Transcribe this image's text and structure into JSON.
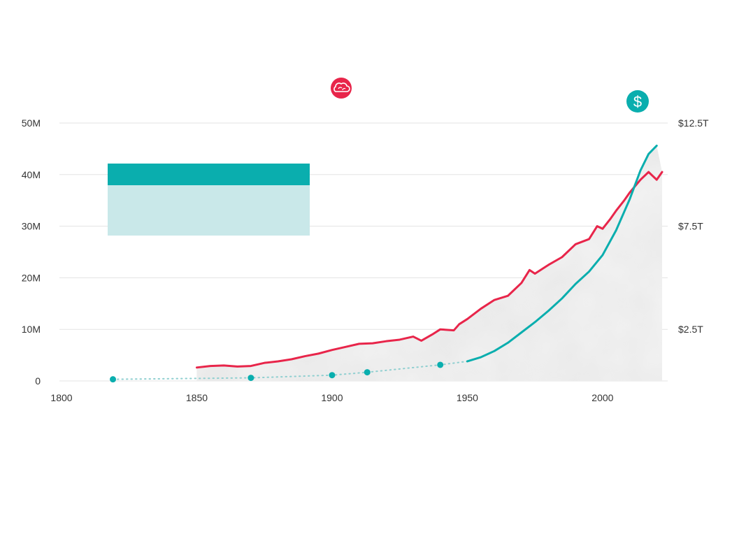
{
  "icons": {
    "left_series_icon": "cloud-icon",
    "right_series_icon": "dollar-icon",
    "dollar_glyph": "$"
  },
  "colors": {
    "left_series": "#e8254a",
    "right_series": "#0aaeae",
    "right_series_dotted": "#8fcfd0",
    "legend_dark": "#0aaeae",
    "legend_light": "#c9e8e9",
    "grid": "#e3e3e3",
    "texture": "#d8d8d8"
  },
  "chart_data": {
    "type": "line",
    "x_ticks": [
      "1800",
      "1850",
      "1900",
      "1950",
      "2000"
    ],
    "xlim": [
      1800,
      2024
    ],
    "y_left_ticks": [
      {
        "value": 0,
        "label": "0"
      },
      {
        "value": 10,
        "label": "10M"
      },
      {
        "value": 20,
        "label": "20M"
      },
      {
        "value": 30,
        "label": "30M"
      },
      {
        "value": 40,
        "label": "40M"
      },
      {
        "value": 50,
        "label": "50M"
      }
    ],
    "y_right_ticks": [
      {
        "value": 2.5,
        "label": "$2.5T"
      },
      {
        "value": 7.5,
        "label": "$7.5T"
      },
      {
        "value": 12.5,
        "label": "$12.5T"
      }
    ],
    "ylim_left": [
      0,
      50
    ],
    "ylim_right": [
      0,
      12.5
    ],
    "series": [
      {
        "axis": "left",
        "style": "solid",
        "points": [
          [
            1850,
            2.6
          ],
          [
            1855,
            2.9
          ],
          [
            1860,
            3.0
          ],
          [
            1865,
            2.8
          ],
          [
            1870,
            2.9
          ],
          [
            1875,
            3.5
          ],
          [
            1880,
            3.8
          ],
          [
            1885,
            4.2
          ],
          [
            1890,
            4.8
          ],
          [
            1895,
            5.3
          ],
          [
            1900,
            6.0
          ],
          [
            1905,
            6.6
          ],
          [
            1910,
            7.2
          ],
          [
            1915,
            7.3
          ],
          [
            1920,
            7.7
          ],
          [
            1925,
            8.0
          ],
          [
            1930,
            8.6
          ],
          [
            1933,
            7.8
          ],
          [
            1937,
            9.0
          ],
          [
            1940,
            10.0
          ],
          [
            1945,
            9.8
          ],
          [
            1947,
            11.0
          ],
          [
            1950,
            12.0
          ],
          [
            1955,
            14.0
          ],
          [
            1960,
            15.7
          ],
          [
            1965,
            16.5
          ],
          [
            1970,
            19.0
          ],
          [
            1973,
            21.5
          ],
          [
            1975,
            20.8
          ],
          [
            1980,
            22.5
          ],
          [
            1985,
            24.0
          ],
          [
            1990,
            26.5
          ],
          [
            1995,
            27.5
          ],
          [
            1998,
            30.0
          ],
          [
            2000,
            29.5
          ],
          [
            2003,
            31.5
          ],
          [
            2005,
            33.0
          ],
          [
            2008,
            35.0
          ],
          [
            2010,
            36.5
          ],
          [
            2014,
            39.0
          ],
          [
            2017,
            40.5
          ],
          [
            2020,
            39.0
          ],
          [
            2022,
            40.5
          ]
        ]
      },
      {
        "axis": "right",
        "style": "dotted",
        "points": [
          [
            1819,
            0.08
          ],
          [
            1870,
            0.15
          ],
          [
            1900,
            0.28
          ],
          [
            1913,
            0.42
          ],
          [
            1940,
            0.78
          ],
          [
            1950,
            0.95
          ]
        ],
        "markers_at": [
          1819,
          1870,
          1900,
          1913,
          1940
        ]
      },
      {
        "axis": "right",
        "style": "solid",
        "points": [
          [
            1950,
            0.95
          ],
          [
            1955,
            1.15
          ],
          [
            1960,
            1.45
          ],
          [
            1965,
            1.85
          ],
          [
            1970,
            2.35
          ],
          [
            1975,
            2.85
          ],
          [
            1980,
            3.4
          ],
          [
            1985,
            4.0
          ],
          [
            1990,
            4.7
          ],
          [
            1995,
            5.3
          ],
          [
            2000,
            6.1
          ],
          [
            2005,
            7.3
          ],
          [
            2008,
            8.2
          ],
          [
            2010,
            8.8
          ],
          [
            2014,
            10.2
          ],
          [
            2017,
            11.0
          ],
          [
            2020,
            11.4
          ]
        ]
      }
    ],
    "legend": {
      "placement": "top-left",
      "entries": [
        {
          "color": "#0aaeae"
        },
        {
          "color": "#c9e8e9"
        }
      ]
    },
    "grid": true
  }
}
